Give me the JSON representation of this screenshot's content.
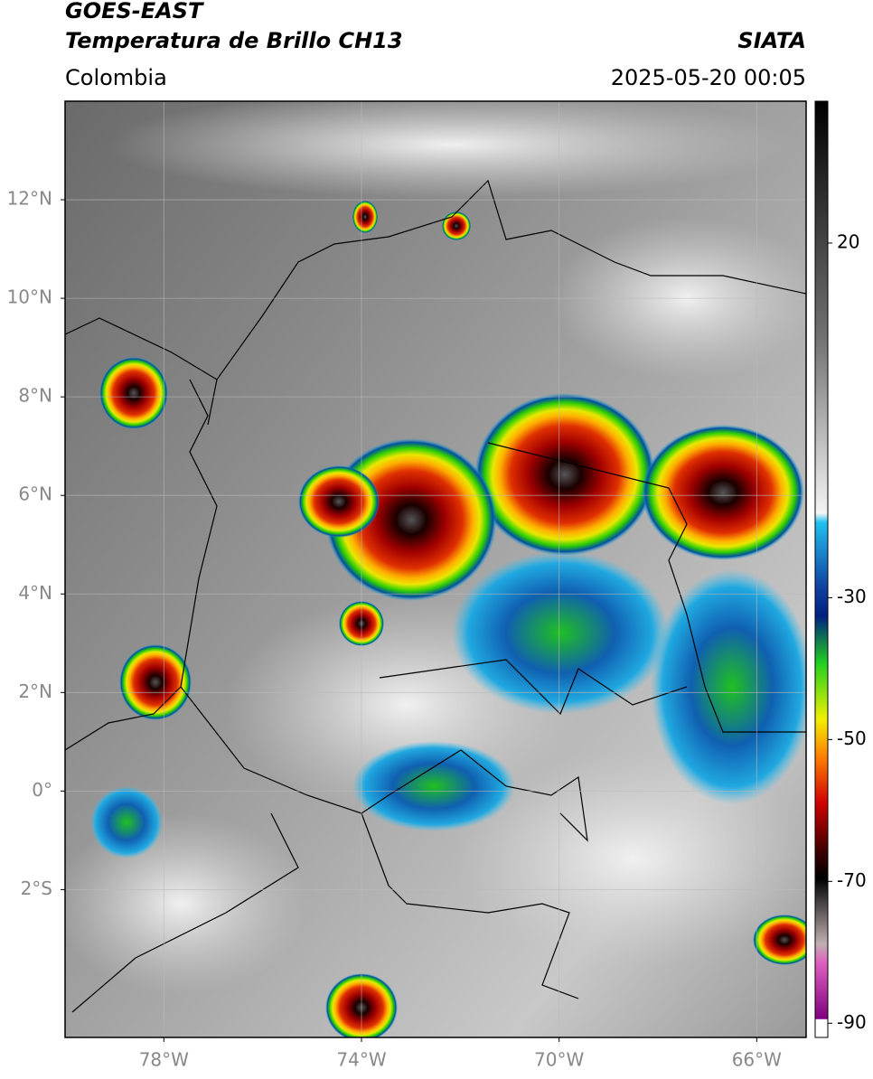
{
  "chart_data": {
    "type": "map",
    "title": "GOES-EAST",
    "subtitle": "Temperatura de Brillo CH13",
    "source": "SIATA",
    "region": "Colombia",
    "datetime": "2025-05-20 00:05",
    "xlim": [
      -80,
      -65
    ],
    "ylim": [
      -5,
      14
    ],
    "xticks": [
      {
        "value": -78,
        "label": "78°W"
      },
      {
        "value": -74,
        "label": "74°W"
      },
      {
        "value": -70,
        "label": "70°W"
      },
      {
        "value": -66,
        "label": "66°W"
      }
    ],
    "yticks": [
      {
        "value": 12,
        "label": "12°N"
      },
      {
        "value": 10,
        "label": "10°N"
      },
      {
        "value": 8,
        "label": "8°N"
      },
      {
        "value": 6,
        "label": "6°N"
      },
      {
        "value": 4,
        "label": "4°N"
      },
      {
        "value": 2,
        "label": "2°N"
      },
      {
        "value": 0,
        "label": "0°"
      },
      {
        "value": -2,
        "label": "2°S"
      }
    ],
    "grid": true,
    "colorbar": {
      "lim": [
        -92,
        40
      ],
      "ticks": [
        20,
        -30,
        -50,
        -70,
        -90
      ]
    }
  }
}
